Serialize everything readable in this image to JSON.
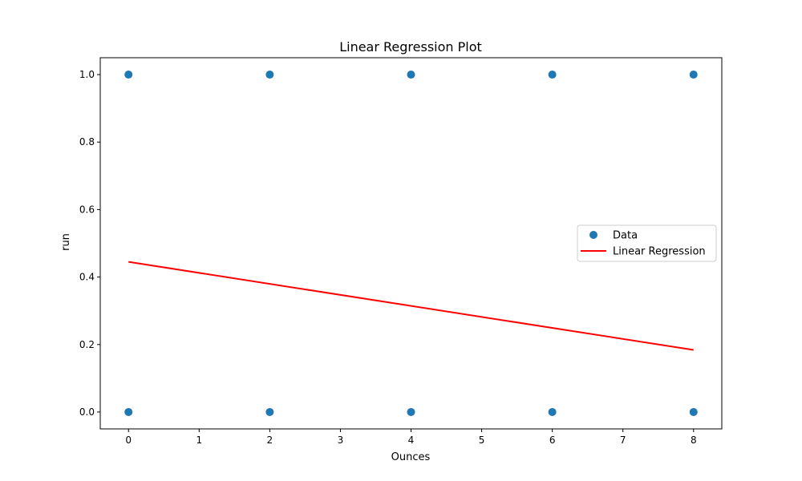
{
  "chart_data": {
    "type": "scatter",
    "title": "Linear Regression Plot",
    "xlabel": "Ounces",
    "ylabel": "run",
    "xlim": [
      -0.4,
      8.4
    ],
    "ylim": [
      -0.05,
      1.05
    ],
    "xticks": [
      0,
      1,
      2,
      3,
      4,
      5,
      6,
      7,
      8
    ],
    "yticks": [
      0.0,
      0.2,
      0.4,
      0.6,
      0.8,
      1.0
    ],
    "ytick_labels": [
      "0.0",
      "0.2",
      "0.4",
      "0.6",
      "0.8",
      "1.0"
    ],
    "grid": false,
    "legend_position": "center-right",
    "series": [
      {
        "name": "Data",
        "kind": "scatter",
        "color": "#1f77b4",
        "points": [
          {
            "x": 0,
            "y": 1
          },
          {
            "x": 0,
            "y": 0
          },
          {
            "x": 2,
            "y": 1
          },
          {
            "x": 2,
            "y": 0
          },
          {
            "x": 4,
            "y": 1
          },
          {
            "x": 4,
            "y": 0
          },
          {
            "x": 6,
            "y": 1
          },
          {
            "x": 6,
            "y": 0
          },
          {
            "x": 8,
            "y": 1
          },
          {
            "x": 8,
            "y": 0
          }
        ]
      },
      {
        "name": "Linear Regression",
        "kind": "line",
        "color": "#ff0000",
        "points": [
          {
            "x": 0,
            "y": 0.445
          },
          {
            "x": 8,
            "y": 0.184
          }
        ]
      }
    ]
  }
}
